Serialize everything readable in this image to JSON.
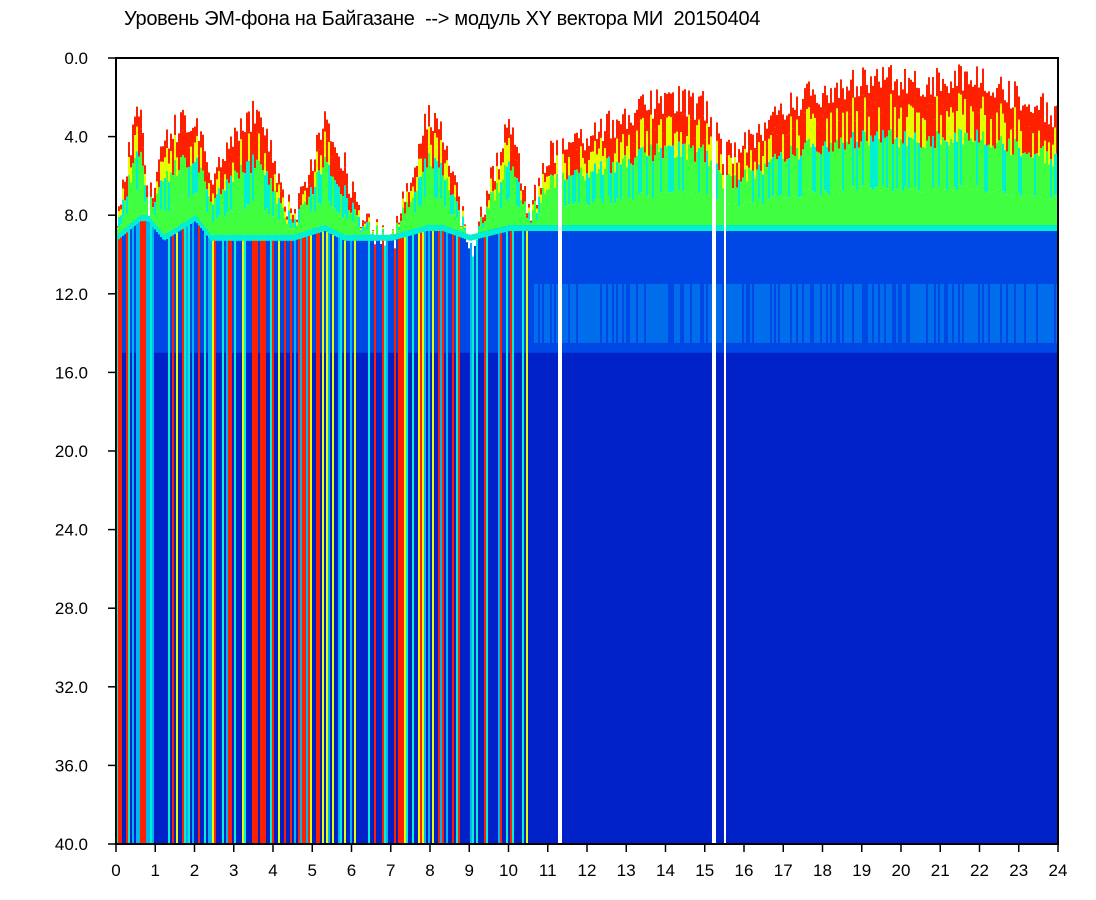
{
  "chart_data": {
    "type": "heatmap",
    "title": "Уровень ЭМ-фона на Байгазане  --> модуль XY вектора МИ  20150404",
    "xlabel": "",
    "ylabel": "",
    "xlim": [
      0,
      24
    ],
    "ylim": [
      0,
      40
    ],
    "y_inverted": true,
    "x_ticks": [
      "0",
      "1",
      "2",
      "3",
      "4",
      "5",
      "6",
      "7",
      "8",
      "9",
      "10",
      "11",
      "12",
      "13",
      "14",
      "15",
      "16",
      "17",
      "18",
      "19",
      "20",
      "21",
      "22",
      "23",
      "24"
    ],
    "y_ticks": [
      "0.0",
      "4.0",
      "8.0",
      "12.0",
      "16.0",
      "20.0",
      "24.0",
      "28.0",
      "32.0",
      "36.0",
      "40.0"
    ],
    "colorscale": [
      "#0020c8",
      "#0048e6",
      "#00b4f0",
      "#00f0d0",
      "#40ff40",
      "#e6ff00",
      "#ff2000"
    ],
    "grid": false,
    "legend": "none",
    "profile": {
      "hours": [
        0,
        0.6,
        0.8,
        1.2,
        2.0,
        2.4,
        3.6,
        4.5,
        5.3,
        5.8,
        6.2,
        7.0,
        7.9,
        8.3,
        9.0,
        10.0,
        10.5,
        11.0,
        12.0,
        13.0,
        14.0,
        15.0,
        15.5,
        16.5,
        17.5,
        18.5,
        19.5,
        20.5,
        21.5,
        22.5,
        23.5,
        24.0
      ],
      "signal_top": [
        8.0,
        2.0,
        7.5,
        4.0,
        2.8,
        6.0,
        2.5,
        8.5,
        3.0,
        5.5,
        8.0,
        9.5,
        3.0,
        3.5,
        10.0,
        3.0,
        8.0,
        5.0,
        4.0,
        3.0,
        2.0,
        2.5,
        5.0,
        3.5,
        2.0,
        1.5,
        1.0,
        1.5,
        1.0,
        1.5,
        2.5,
        3.0
      ],
      "green_band": [
        9.0,
        8.0,
        8.0,
        9.0,
        8.0,
        9.0,
        9.0,
        9.0,
        8.5,
        9.0,
        9.0,
        9.0,
        8.5,
        8.5,
        9.0,
        8.5,
        8.5,
        8.5,
        8.5,
        8.5,
        8.5,
        8.5,
        8.5,
        8.5,
        8.5,
        8.5,
        8.5,
        8.5,
        8.5,
        8.5,
        8.5,
        8.5
      ],
      "scatter_floor": [
        15.0,
        15.0,
        15.0,
        15.0,
        15.0,
        15.0,
        15.0,
        15.0,
        15.0,
        15.0,
        15.0,
        15.0,
        15.0,
        15.0,
        15.0,
        15.0,
        15.0,
        15.0,
        15.0,
        15.0,
        15.0,
        15.0,
        15.0,
        15.0,
        15.0,
        15.0,
        15.0,
        15.0,
        15.0,
        15.0,
        15.0,
        15.0
      ]
    },
    "gaps_hours": [
      11.3,
      15.2,
      15.5
    ]
  }
}
